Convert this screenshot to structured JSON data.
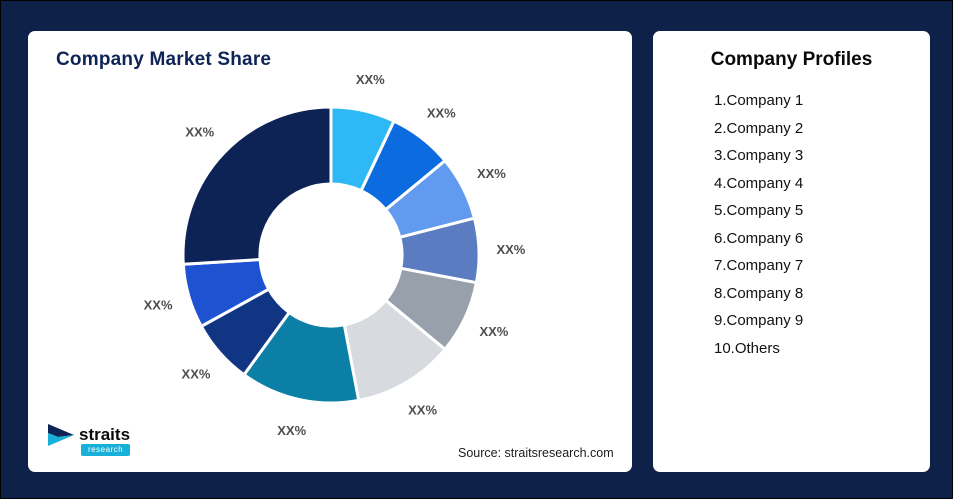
{
  "page": {
    "background": "#0e2148"
  },
  "left_card": {
    "title": "Company Market Share",
    "source": "Source: straitsresearch.com"
  },
  "logo": {
    "name": "straits",
    "sub": "research",
    "accent_color": "#17b0d8",
    "dark_color": "#0e2356"
  },
  "right_card": {
    "title": "Company Profiles",
    "items": [
      "1.Company 1",
      "2.Company 2",
      "3.Company 3",
      "4.Company 4",
      "5.Company 5",
      "6.Company 6",
      "7.Company 7",
      "8.Company 8",
      "9.Company 9",
      "10.Others"
    ]
  },
  "chart_data": {
    "type": "pie",
    "subtype": "donut",
    "title": "Company Market Share",
    "categories": [
      "Company 1",
      "Company 2",
      "Company 3",
      "Company 4",
      "Company 5",
      "Company 6",
      "Company 7",
      "Company 8",
      "Company 9",
      "Others"
    ],
    "values": [
      7,
      7,
      7,
      7,
      8,
      11,
      13,
      7,
      7,
      26
    ],
    "values_note": "percent share estimated from arc sizes; on-chart labels are placeholders",
    "slice_label": "XX%",
    "colors": [
      "#2eb8f5",
      "#0d6be0",
      "#629af0",
      "#5b7cc0",
      "#98a0ac",
      "#d7dade",
      "#0c7fa6",
      "#0f3583",
      "#1e52d1",
      "#0d2356"
    ],
    "start_angle_deg": 0,
    "inner_radius_ratio": 0.48,
    "legend_position": "none",
    "grid": false
  }
}
